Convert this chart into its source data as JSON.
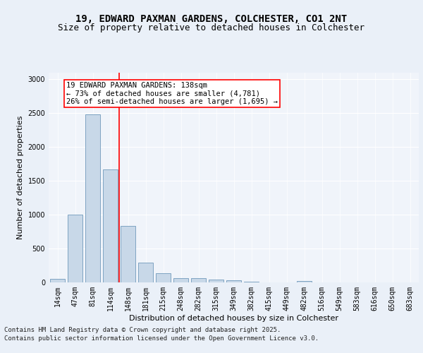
{
  "title": "19, EDWARD PAXMAN GARDENS, COLCHESTER, CO1 2NT",
  "subtitle": "Size of property relative to detached houses in Colchester",
  "xlabel": "Distribution of detached houses by size in Colchester",
  "ylabel": "Number of detached properties",
  "bins": [
    "14sqm",
    "47sqm",
    "81sqm",
    "114sqm",
    "148sqm",
    "181sqm",
    "215sqm",
    "248sqm",
    "282sqm",
    "315sqm",
    "349sqm",
    "382sqm",
    "415sqm",
    "449sqm",
    "482sqm",
    "516sqm",
    "549sqm",
    "583sqm",
    "616sqm",
    "650sqm",
    "683sqm"
  ],
  "values": [
    50,
    1005,
    2480,
    1670,
    830,
    295,
    140,
    65,
    60,
    45,
    30,
    10,
    0,
    0,
    25,
    0,
    0,
    0,
    0,
    0,
    0
  ],
  "bar_color": "#c8d8e8",
  "bar_edge_color": "#5a8ab0",
  "vline_x_index": 3.5,
  "vline_color": "red",
  "annotation_text": "19 EDWARD PAXMAN GARDENS: 138sqm\n← 73% of detached houses are smaller (4,781)\n26% of semi-detached houses are larger (1,695) →",
  "annotation_box_color": "white",
  "annotation_box_edge_color": "red",
  "ylim": [
    0,
    3100
  ],
  "yticks": [
    0,
    500,
    1000,
    1500,
    2000,
    2500,
    3000
  ],
  "footer_line1": "Contains HM Land Registry data © Crown copyright and database right 2025.",
  "footer_line2": "Contains public sector information licensed under the Open Government Licence v3.0.",
  "bg_color": "#eaf0f8",
  "plot_bg_color": "#f0f4fa",
  "title_fontsize": 10,
  "subtitle_fontsize": 9,
  "label_fontsize": 8,
  "tick_fontsize": 7,
  "annotation_fontsize": 7.5,
  "footer_fontsize": 6.5
}
